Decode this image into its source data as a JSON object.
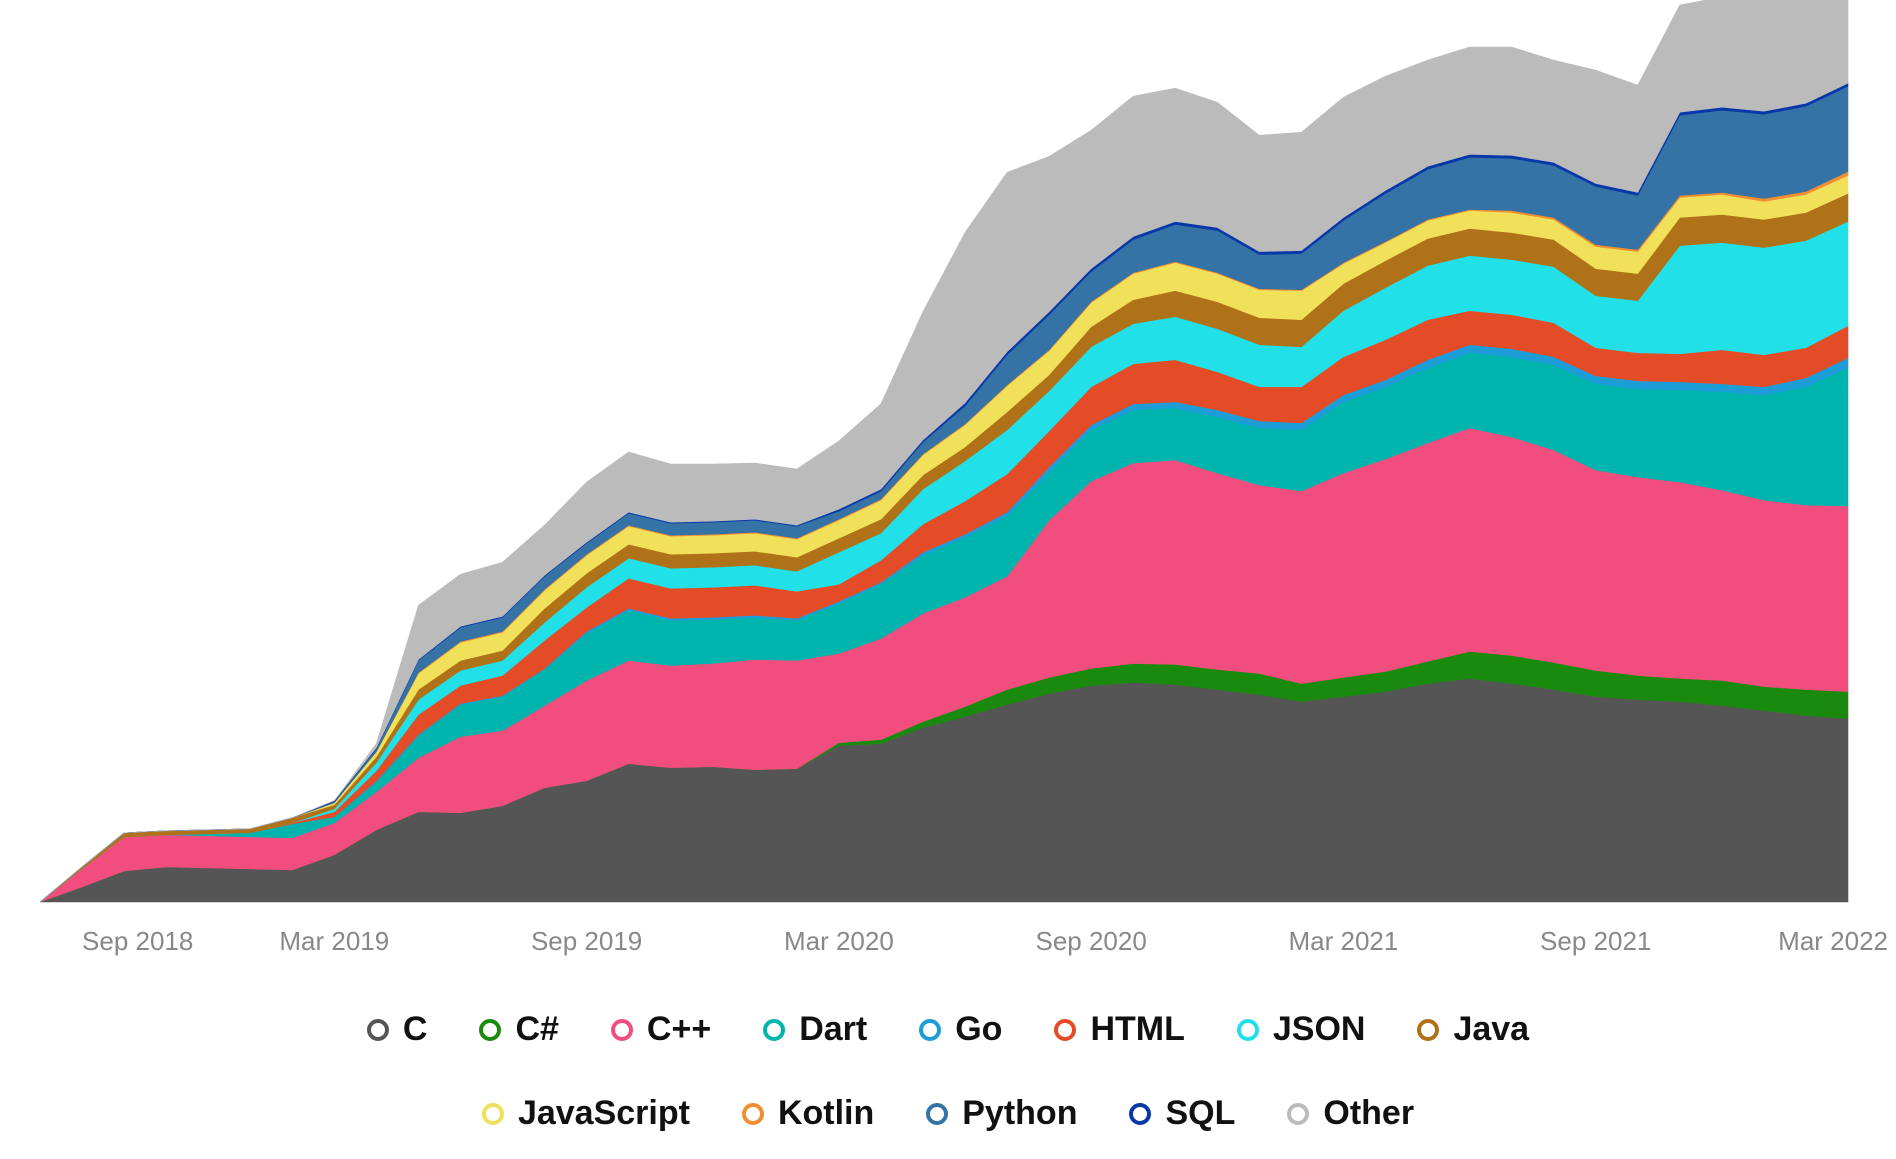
{
  "chart_data": {
    "type": "area",
    "stacked": true,
    "x": [
      "2018-08",
      "2018-09",
      "2018-10",
      "2018-11",
      "2018-12",
      "2019-01",
      "2019-02",
      "2019-03",
      "2019-04",
      "2019-05",
      "2019-06",
      "2019-07",
      "2019-08",
      "2019-09",
      "2019-10",
      "2019-11",
      "2019-12",
      "2020-01",
      "2020-02",
      "2020-03",
      "2020-04",
      "2020-05",
      "2020-06",
      "2020-07",
      "2020-08",
      "2020-09",
      "2020-10",
      "2020-11",
      "2020-12",
      "2021-01",
      "2021-02",
      "2021-03",
      "2021-04",
      "2021-05",
      "2021-06",
      "2021-07",
      "2021-08",
      "2021-09",
      "2021-10",
      "2021-11",
      "2021-12",
      "2022-01",
      "2022-02",
      "2022-03"
    ],
    "x_tick_labels": [
      "Sep 2018",
      "Mar 2019",
      "Sep 2019",
      "Mar 2020",
      "Sep 2020",
      "Mar 2021",
      "Sep 2021",
      "Mar 2022"
    ],
    "x_tick_positions": [
      "2018-09",
      "2019-03",
      "2019-09",
      "2020-03",
      "2020-09",
      "2021-03",
      "2021-09",
      "2022-03"
    ],
    "y_axis_visible": false,
    "ylim": [
      0,
      900
    ],
    "grid": false,
    "legend_position": "bottom",
    "series": [
      {
        "name": "C",
        "color": "#555555",
        "values": [
          0,
          15,
          31,
          35,
          34,
          33,
          32,
          47,
          72,
          90,
          89,
          96,
          114,
          121,
          138,
          134,
          135,
          132,
          133,
          156,
          158,
          174,
          185,
          197,
          208,
          216,
          219,
          217,
          212,
          207,
          200,
          205,
          210,
          218,
          223,
          218,
          212,
          205,
          202,
          200,
          196,
          191,
          186,
          183
        ]
      },
      {
        "name": "C#",
        "color": "#1a8a0f",
        "values": [
          0,
          0,
          0,
          0,
          0,
          0,
          0,
          0,
          0,
          0,
          0,
          0,
          0,
          0,
          0,
          0,
          0,
          0,
          0,
          3,
          4,
          6,
          10,
          15,
          16,
          17,
          19,
          20,
          20,
          21,
          18,
          19,
          20,
          22,
          27,
          28,
          27,
          26,
          24,
          23,
          25,
          24,
          26,
          27
        ]
      },
      {
        "name": "C++",
        "color": "#f14d7e",
        "values": [
          0,
          18,
          34,
          32,
          32,
          32,
          32,
          32,
          38,
          54,
          76,
          75,
          82,
          100,
          103,
          102,
          103,
          110,
          108,
          89,
          101,
          108,
          109,
          113,
          157,
          187,
          200,
          204,
          196,
          188,
          192,
          204,
          212,
          218,
          223,
          218,
          212,
          200,
          198,
          196,
          190,
          186,
          184,
          185
        ]
      },
      {
        "name": "Dart",
        "color": "#00b4ae",
        "values": [
          0,
          0,
          0,
          0,
          2,
          4,
          14,
          6,
          10,
          22,
          32,
          34,
          36,
          47,
          50,
          45,
          44,
          42,
          40,
          50,
          54,
          58,
          60,
          60,
          48,
          51,
          53,
          52,
          56,
          57,
          61,
          71,
          72,
          75,
          75,
          80,
          85,
          86,
          88,
          92,
          98,
          105,
          118,
          138
        ]
      },
      {
        "name": "Go",
        "color": "#1c9dd8",
        "values": [
          0,
          0,
          0,
          0,
          0,
          0,
          0,
          0,
          1,
          1,
          1,
          1,
          1,
          2,
          2,
          2,
          2,
          2,
          2,
          2,
          2,
          3,
          3,
          4,
          5,
          5,
          6,
          6,
          7,
          7,
          7,
          7,
          7,
          8,
          8,
          8,
          8,
          8,
          8,
          8,
          8,
          8,
          9,
          10
        ]
      },
      {
        "name": "HTML",
        "color": "#e34c26",
        "values": [
          0,
          0,
          0,
          0,
          0,
          0,
          1,
          5,
          10,
          20,
          18,
          20,
          28,
          24,
          30,
          30,
          30,
          30,
          27,
          17,
          22,
          28,
          33,
          38,
          36,
          38,
          40,
          42,
          38,
          34,
          36,
          38,
          40,
          40,
          34,
          34,
          34,
          28,
          28,
          28,
          34,
          32,
          30,
          32
        ]
      },
      {
        "name": "JSON",
        "color": "#22e0e8",
        "values": [
          0,
          0,
          0,
          0,
          0,
          0,
          0,
          3,
          8,
          15,
          15,
          15,
          18,
          20,
          20,
          20,
          20,
          20,
          20,
          32,
          27,
          35,
          40,
          44,
          40,
          40,
          40,
          43,
          43,
          42,
          40,
          46,
          52,
          54,
          55,
          55,
          56,
          52,
          52,
          108,
          107,
          107,
          107,
          104
        ]
      },
      {
        "name": "Java",
        "color": "#b07219",
        "values": [
          0,
          2,
          4,
          4,
          4,
          4,
          5,
          4,
          6,
          10,
          10,
          10,
          14,
          14,
          14,
          14,
          14,
          14,
          14,
          14,
          14,
          14,
          14,
          18,
          16,
          20,
          24,
          26,
          27,
          27,
          27,
          27,
          27,
          27,
          27,
          27,
          27,
          27,
          27,
          28,
          28,
          28,
          28,
          28
        ]
      },
      {
        "name": "JavaScript",
        "color": "#f1e05a",
        "values": [
          0,
          0,
          0,
          0,
          0,
          0,
          0,
          2,
          5,
          16,
          18,
          18,
          18,
          18,
          18,
          18,
          18,
          18,
          18,
          18,
          19,
          20,
          22,
          26,
          24,
          24,
          26,
          28,
          28,
          28,
          29,
          20,
          18,
          18,
          18,
          20,
          20,
          22,
          22,
          20,
          20,
          18,
          18,
          18
        ]
      },
      {
        "name": "Kotlin",
        "color": "#f18e33",
        "values": [
          0,
          0,
          0,
          0,
          0,
          0,
          0,
          0,
          0,
          1,
          1,
          1,
          1,
          1,
          1,
          1,
          1,
          1,
          1,
          1,
          1,
          1,
          1,
          1,
          1,
          1,
          1,
          1,
          1,
          1,
          1,
          1,
          1,
          1,
          1,
          2,
          2,
          2,
          2,
          2,
          2,
          3,
          3,
          4
        ]
      },
      {
        "name": "Python",
        "color": "#3572a5",
        "values": [
          0,
          0,
          0,
          0,
          0,
          0,
          0,
          1,
          3,
          12,
          14,
          14,
          13,
          11,
          12,
          12,
          12,
          12,
          12,
          8,
          8,
          12,
          18,
          30,
          35,
          30,
          33,
          37,
          42,
          34,
          36,
          42,
          48,
          50,
          52,
          52,
          52,
          58,
          54,
          80,
          82,
          84,
          85,
          85
        ]
      },
      {
        "name": "SQL",
        "color": "#0838a8",
        "values": [
          0,
          0,
          0,
          0,
          0,
          0,
          0,
          1,
          1,
          1,
          1,
          1,
          1,
          1,
          1,
          1,
          1,
          1,
          1,
          2,
          2,
          2,
          3,
          3,
          3,
          3,
          3,
          3,
          3,
          3,
          3,
          3,
          3,
          3,
          3,
          3,
          3,
          3,
          3,
          3,
          3,
          3,
          3,
          3
        ]
      },
      {
        "name": "Other",
        "color": "#bbbbbb",
        "values": [
          0,
          0,
          0,
          0,
          0,
          0,
          0,
          0,
          4,
          54,
          52,
          54,
          50,
          60,
          60,
          58,
          57,
          56,
          56,
          68,
          85,
          128,
          170,
          179,
          155,
          138,
          140,
          133,
          125,
          116,
          118,
          120,
          114,
          106,
          107,
          108,
          102,
          113,
          107,
          107,
          110,
          113,
          114,
          107
        ]
      }
    ]
  }
}
